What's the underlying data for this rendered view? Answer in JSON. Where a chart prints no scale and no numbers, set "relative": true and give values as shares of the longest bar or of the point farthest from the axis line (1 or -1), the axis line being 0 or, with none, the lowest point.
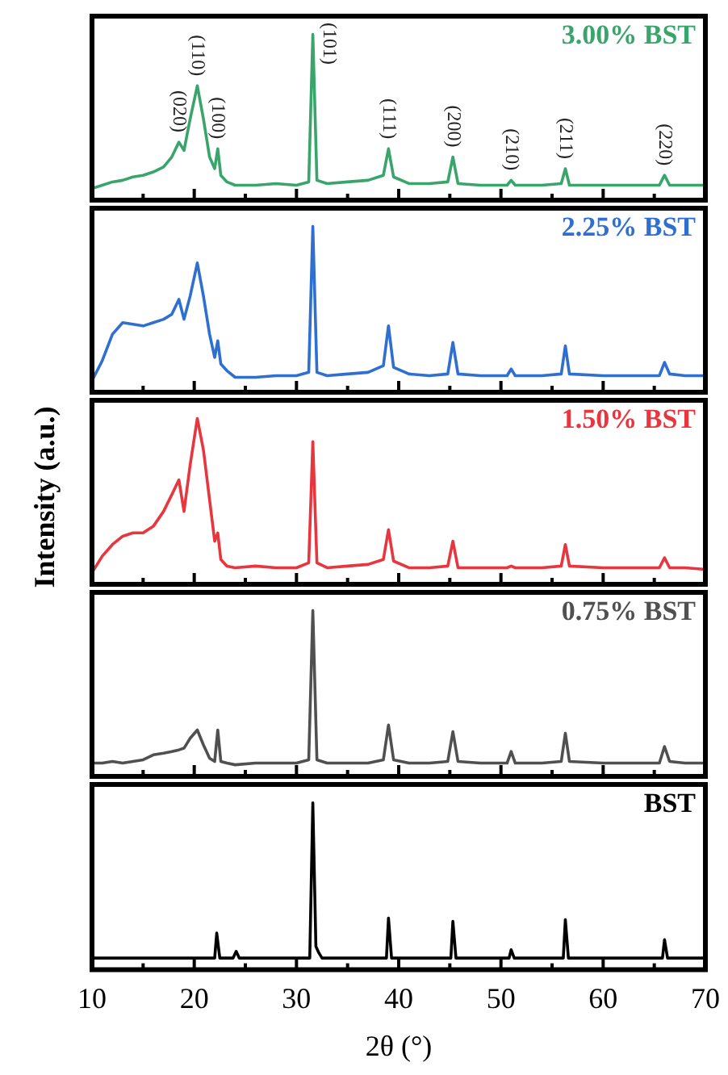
{
  "chart_data": [
    {
      "type": "line",
      "relative": true,
      "xlim": [
        10,
        70
      ],
      "tick_labels": false,
      "grid": false,
      "legend": false,
      "marker": "none",
      "line_style": "solid",
      "xticks": [
        10,
        {
          "value": 15,
          "label": null
        },
        20,
        {
          "value": 25,
          "label": null
        },
        30,
        {
          "value": 35,
          "label": null
        },
        40,
        {
          "value": 45,
          "label": null
        },
        50,
        {
          "value": 55,
          "label": null
        },
        60,
        {
          "value": 65,
          "label": null
        },
        70
      ],
      "x": [
        10,
        11,
        12,
        13,
        14,
        15,
        16,
        17,
        17.8,
        18.5,
        19.0,
        19.6,
        20.3,
        20.9,
        21.5,
        22.0,
        22.3,
        22.6,
        23.2,
        24,
        26,
        28,
        30,
        31.2,
        31.6,
        32.0,
        33,
        35,
        37,
        38.5,
        39.0,
        39.5,
        41,
        43,
        44.8,
        45.3,
        45.8,
        48,
        50.6,
        51.0,
        51.4,
        54,
        55.9,
        56.3,
        56.7,
        60,
        63,
        65.5,
        66.0,
        66.5,
        68,
        70
      ],
      "series": [
        {
          "name": "3.00% BST",
          "color": "#3aa56b",
          "values": [
            0.07,
            0.09,
            0.11,
            0.12,
            0.14,
            0.15,
            0.17,
            0.2,
            0.26,
            0.35,
            0.3,
            0.49,
            0.69,
            0.49,
            0.26,
            0.19,
            0.31,
            0.15,
            0.11,
            0.09,
            0.09,
            0.1,
            0.09,
            0.11,
            1,
            0.12,
            0.1,
            0.11,
            0.12,
            0.15,
            0.31,
            0.14,
            0.1,
            0.1,
            0.11,
            0.26,
            0.1,
            0.09,
            0.09,
            0.12,
            0.09,
            0.09,
            0.1,
            0.19,
            0.09,
            0.09,
            0.09,
            0.09,
            0.15,
            0.09,
            0.09,
            0.09
          ]
        }
      ],
      "annotations": [
        {
          "text": "(020)",
          "x": 18.5,
          "y": 0.35
        },
        {
          "text": "(110)",
          "x": 20.3,
          "y": 0.69
        },
        {
          "text": "(100)",
          "x": 22.3,
          "y": 0.31
        },
        {
          "text": "(101)",
          "x": 31.6,
          "y": 1
        },
        {
          "text": "(111)",
          "x": 39.0,
          "y": 0.31
        },
        {
          "text": "(200)",
          "x": 45.3,
          "y": 0.26
        },
        {
          "text": "(210)",
          "x": 51.0,
          "y": 0.12
        },
        {
          "text": "(211)",
          "x": 56.3,
          "y": 0.19
        },
        {
          "text": "(220)",
          "x": 66.0,
          "y": 0.15
        }
      ]
    },
    {
      "type": "line",
      "relative": true,
      "xlim": [
        10,
        70
      ],
      "tick_labels": false,
      "grid": false,
      "legend": false,
      "marker": "none",
      "line_style": "solid",
      "xticks": [
        10,
        {
          "value": 15,
          "label": null
        },
        20,
        {
          "value": 25,
          "label": null
        },
        30,
        {
          "value": 35,
          "label": null
        },
        40,
        {
          "value": 45,
          "label": null
        },
        50,
        {
          "value": 55,
          "label": null
        },
        60,
        {
          "value": 65,
          "label": null
        },
        70
      ],
      "x": [
        10,
        11,
        12,
        13,
        14,
        15,
        16,
        17,
        17.8,
        18.5,
        19.0,
        19.6,
        20.3,
        20.9,
        21.5,
        22.0,
        22.3,
        22.6,
        23.2,
        24,
        26,
        28,
        30,
        31.2,
        31.6,
        32.0,
        33,
        35,
        37,
        38.5,
        39.0,
        39.5,
        41,
        43,
        44.8,
        45.3,
        45.8,
        48,
        50.6,
        51.0,
        51.4,
        54,
        55.9,
        56.3,
        56.7,
        60,
        63,
        65.5,
        66.0,
        66.5,
        68,
        70
      ],
      "series": [
        {
          "name": "2.25% BST",
          "color": "#2f6fd0",
          "values": [
            0.07,
            0.19,
            0.35,
            0.42,
            0.41,
            0.4,
            0.42,
            0.44,
            0.47,
            0.56,
            0.44,
            0.58,
            0.78,
            0.58,
            0.35,
            0.21,
            0.31,
            0.17,
            0.13,
            0.09,
            0.09,
            0.1,
            0.1,
            0.12,
            1,
            0.12,
            0.1,
            0.11,
            0.12,
            0.16,
            0.4,
            0.15,
            0.11,
            0.1,
            0.11,
            0.3,
            0.11,
            0.1,
            0.1,
            0.14,
            0.1,
            0.1,
            0.11,
            0.28,
            0.11,
            0.1,
            0.1,
            0.1,
            0.18,
            0.11,
            0.1,
            0.1
          ]
        }
      ]
    },
    {
      "type": "line",
      "relative": true,
      "xlim": [
        10,
        70
      ],
      "tick_labels": false,
      "grid": false,
      "legend": false,
      "marker": "none",
      "line_style": "solid",
      "ylabel": "Intensity (a.u.)",
      "xticks": [
        10,
        {
          "value": 15,
          "label": null
        },
        20,
        {
          "value": 25,
          "label": null
        },
        30,
        {
          "value": 35,
          "label": null
        },
        40,
        {
          "value": 45,
          "label": null
        },
        50,
        {
          "value": 55,
          "label": null
        },
        60,
        {
          "value": 65,
          "label": null
        },
        70
      ],
      "x": [
        10,
        11,
        12,
        13,
        14,
        15,
        16,
        17,
        17.8,
        18.5,
        19.0,
        19.6,
        20.3,
        20.9,
        21.5,
        22.0,
        22.3,
        22.6,
        23.2,
        24,
        26,
        28,
        30,
        31.2,
        31.6,
        32.0,
        33,
        35,
        37,
        38.5,
        39.0,
        39.5,
        41,
        43,
        44.8,
        45.3,
        45.8,
        48,
        50.6,
        51.0,
        51.4,
        54,
        55.9,
        56.3,
        56.7,
        60,
        63,
        65.5,
        66.0,
        66.5,
        68,
        70
      ],
      "series": [
        {
          "name": "1.50% BST",
          "color": "#e8363f",
          "values": [
            0.07,
            0.17,
            0.24,
            0.29,
            0.31,
            0.31,
            0.35,
            0.44,
            0.54,
            0.63,
            0.44,
            0.72,
            1,
            0.81,
            0.51,
            0.26,
            0.31,
            0.15,
            0.11,
            0.1,
            0.11,
            0.1,
            0.1,
            0.13,
            0.86,
            0.13,
            0.1,
            0.11,
            0.12,
            0.15,
            0.33,
            0.14,
            0.1,
            0.1,
            0.11,
            0.26,
            0.1,
            0.1,
            0.1,
            0.11,
            0.1,
            0.1,
            0.11,
            0.24,
            0.11,
            0.1,
            0.1,
            0.1,
            0.16,
            0.1,
            0.1,
            0.09
          ]
        }
      ]
    },
    {
      "type": "line",
      "relative": true,
      "xlim": [
        10,
        70
      ],
      "tick_labels": false,
      "grid": false,
      "legend": false,
      "marker": "none",
      "line_style": "solid",
      "xticks": [
        10,
        {
          "value": 15,
          "label": null
        },
        20,
        {
          "value": 25,
          "label": null
        },
        30,
        {
          "value": 35,
          "label": null
        },
        40,
        {
          "value": 45,
          "label": null
        },
        50,
        {
          "value": 55,
          "label": null
        },
        60,
        {
          "value": 65,
          "label": null
        },
        70
      ],
      "x": [
        10,
        11,
        12,
        13,
        14,
        15,
        16,
        17,
        17.8,
        18.5,
        19.0,
        19.6,
        20.3,
        20.9,
        21.5,
        22.0,
        22.3,
        22.6,
        23.2,
        24,
        26,
        28,
        30,
        31.2,
        31.6,
        32.0,
        33,
        35,
        37,
        38.5,
        39.0,
        39.5,
        41,
        43,
        44.8,
        45.3,
        45.8,
        48,
        50.6,
        51.0,
        51.4,
        54,
        55.9,
        56.3,
        56.7,
        60,
        63,
        65.5,
        66.0,
        66.5,
        68,
        70
      ],
      "series": [
        {
          "name": "0.75% BST",
          "color": "#505050",
          "values": [
            0.08,
            0.08,
            0.09,
            0.08,
            0.09,
            0.1,
            0.13,
            0.14,
            0.15,
            0.16,
            0.17,
            0.23,
            0.28,
            0.19,
            0.11,
            0.09,
            0.28,
            0.09,
            0.08,
            0.07,
            0.08,
            0.08,
            0.08,
            0.1,
            1,
            0.1,
            0.08,
            0.08,
            0.08,
            0.1,
            0.31,
            0.1,
            0.08,
            0.08,
            0.09,
            0.27,
            0.09,
            0.08,
            0.08,
            0.15,
            0.08,
            0.08,
            0.09,
            0.26,
            0.09,
            0.08,
            0.08,
            0.08,
            0.18,
            0.09,
            0.08,
            0.08
          ]
        }
      ]
    },
    {
      "type": "line",
      "relative": true,
      "xlim": [
        10,
        70
      ],
      "tick_labels": "x",
      "grid": false,
      "legend": false,
      "marker": "none",
      "line_style": "solid",
      "xlabel": "2θ (°)",
      "xticks": [
        10,
        {
          "value": 15,
          "label": null
        },
        20,
        {
          "value": 25,
          "label": null
        },
        30,
        {
          "value": 35,
          "label": null
        },
        40,
        {
          "value": 45,
          "label": null
        },
        50,
        {
          "value": 55,
          "label": null
        },
        60,
        {
          "value": 65,
          "label": null
        },
        70
      ],
      "x": [
        10,
        22.0,
        22.2,
        22.5,
        23.8,
        24.1,
        24.4,
        31.3,
        31.6,
        31.9,
        32.2,
        32.5,
        38.8,
        39.0,
        39.3,
        45.1,
        45.3,
        45.6,
        50.8,
        51.0,
        51.3,
        56.1,
        56.3,
        56.6,
        65.8,
        66.0,
        66.3,
        70
      ],
      "series": [
        {
          "name": "BST",
          "color": "#000000",
          "values": [
            0.07,
            0.07,
            0.22,
            0.07,
            0.07,
            0.11,
            0.07,
            0.07,
            1,
            0.14,
            0.1,
            0.07,
            0.07,
            0.31,
            0.07,
            0.07,
            0.29,
            0.07,
            0.07,
            0.12,
            0.07,
            0.07,
            0.3,
            0.07,
            0.07,
            0.18,
            0.07,
            0.07
          ]
        }
      ]
    }
  ]
}
